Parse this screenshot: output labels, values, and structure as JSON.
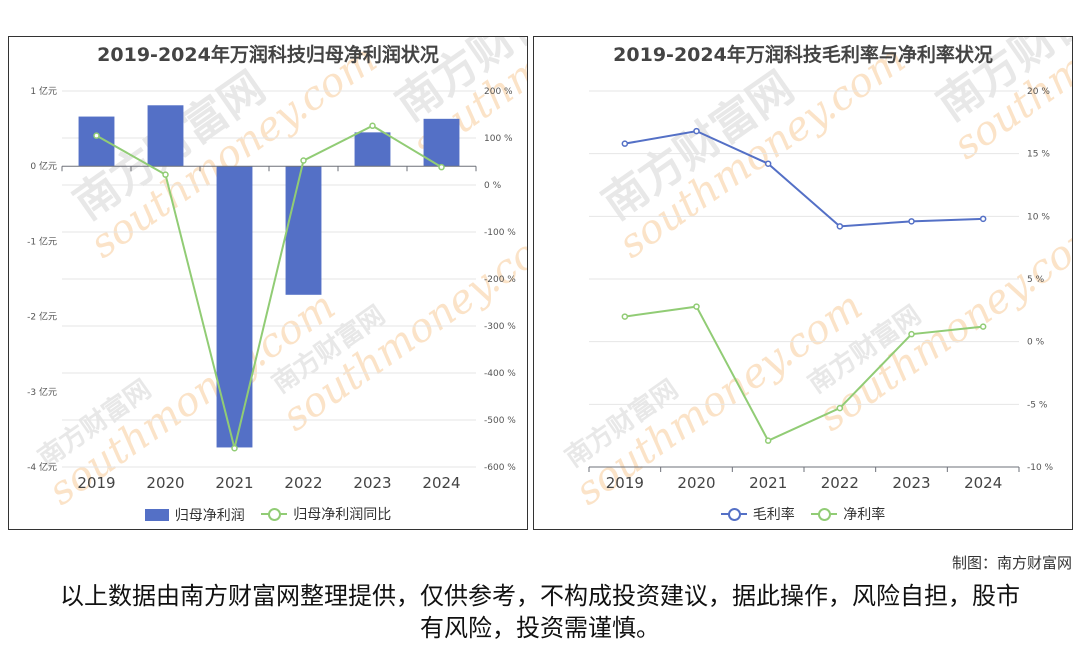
{
  "watermark": {
    "cn": "南方财富网",
    "en": "southmoney.com"
  },
  "credit": "制图：南方财富网",
  "disclaimer": "以上数据由南方财富网整理提供，仅供参考，不构成投资建议，据此操作，风险自担，股市有风险，投资需谨慎。",
  "colors": {
    "bar": "#5470c6",
    "green": "#91cc75",
    "blue": "#5470c6"
  },
  "chart_data": [
    {
      "type": "bar",
      "title": "2019-2024年万润科技归母净利润状况",
      "categories": [
        "2019",
        "2020",
        "2021",
        "2022",
        "2023",
        "2024"
      ],
      "series": [
        {
          "name": "归母净利润",
          "type": "bar",
          "axis": "left",
          "values": [
            0.66,
            0.81,
            -3.74,
            -1.71,
            0.45,
            0.63
          ]
        },
        {
          "name": "归母净利润同比",
          "type": "line",
          "axis": "right",
          "values": [
            105,
            22,
            -560,
            52,
            126,
            38
          ]
        }
      ],
      "y_left": {
        "min": -4,
        "max": 1,
        "step": 1,
        "suffix": " 亿元"
      },
      "y_right": {
        "min": -600,
        "max": 200,
        "step": 100,
        "suffix": " %"
      },
      "legend_position": "bottom"
    },
    {
      "type": "line",
      "title": "2019-2024年万润科技毛利率与净利率状况",
      "categories": [
        "2019",
        "2020",
        "2021",
        "2022",
        "2023",
        "2024"
      ],
      "series": [
        {
          "name": "毛利率",
          "values": [
            15.8,
            16.8,
            14.2,
            9.2,
            9.6,
            9.8
          ]
        },
        {
          "name": "净利率",
          "values": [
            2.0,
            2.8,
            -7.9,
            -5.3,
            0.6,
            1.2
          ]
        }
      ],
      "y_right": {
        "min": -10,
        "max": 20,
        "step": 5,
        "suffix": " %"
      },
      "legend_position": "bottom"
    }
  ]
}
